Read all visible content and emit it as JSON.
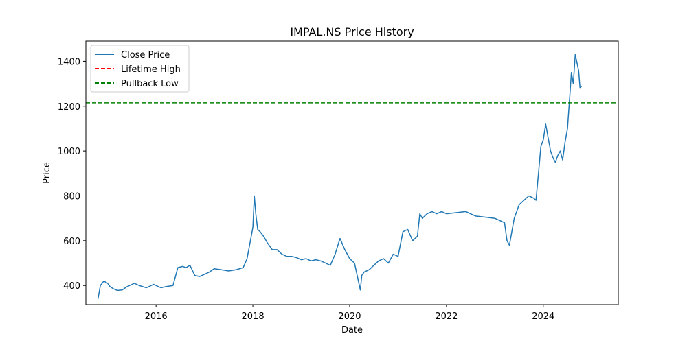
{
  "chart_data": {
    "type": "line",
    "title": "IMPAL.NS Price History",
    "xlabel": "Date",
    "ylabel": "Price",
    "xlim": [
      2014.55,
      2025.55
    ],
    "ylim": [
      315,
      1490
    ],
    "x_ticks": [
      2016,
      2018,
      2020,
      2022,
      2024
    ],
    "y_ticks": [
      400,
      600,
      800,
      1000,
      1200,
      1400
    ],
    "grid": false,
    "legend_position": "top-left",
    "series": [
      {
        "name": "Close Price",
        "color": "#1f77b4",
        "style": "solid",
        "x": [
          2014.8,
          2014.85,
          2014.92,
          2015.0,
          2015.05,
          2015.12,
          2015.2,
          2015.3,
          2015.4,
          2015.55,
          2015.65,
          2015.8,
          2015.95,
          2016.1,
          2016.2,
          2016.35,
          2016.45,
          2016.55,
          2016.62,
          2016.7,
          2016.8,
          2016.9,
          2017.0,
          2017.1,
          2017.2,
          2017.35,
          2017.5,
          2017.65,
          2017.8,
          2017.88,
          2017.95,
          2018.0,
          2018.03,
          2018.06,
          2018.1,
          2018.15,
          2018.22,
          2018.3,
          2018.4,
          2018.5,
          2018.6,
          2018.7,
          2018.8,
          2018.9,
          2019.0,
          2019.1,
          2019.2,
          2019.3,
          2019.4,
          2019.5,
          2019.6,
          2019.7,
          2019.8,
          2019.9,
          2020.0,
          2020.1,
          2020.18,
          2020.22,
          2020.25,
          2020.3,
          2020.4,
          2020.5,
          2020.6,
          2020.7,
          2020.8,
          2020.9,
          2021.0,
          2021.1,
          2021.2,
          2021.3,
          2021.4,
          2021.45,
          2021.5,
          2021.6,
          2021.7,
          2021.8,
          2021.9,
          2022.0,
          2022.2,
          2022.4,
          2022.6,
          2022.8,
          2023.0,
          2023.1,
          2023.2,
          2023.25,
          2023.3,
          2023.4,
          2023.5,
          2023.6,
          2023.7,
          2023.8,
          2023.85,
          2023.9,
          2023.95,
          2024.0,
          2024.05,
          2024.1,
          2024.15,
          2024.2,
          2024.25,
          2024.3,
          2024.35,
          2024.4,
          2024.45,
          2024.5,
          2024.55,
          2024.58,
          2024.62,
          2024.66,
          2024.7,
          2024.73,
          2024.76,
          2024.79
        ],
        "values": [
          340,
          400,
          420,
          410,
          395,
          385,
          378,
          380,
          395,
          410,
          400,
          390,
          405,
          390,
          395,
          400,
          480,
          485,
          480,
          490,
          445,
          440,
          450,
          460,
          475,
          470,
          465,
          470,
          480,
          520,
          600,
          660,
          800,
          720,
          650,
          640,
          620,
          590,
          560,
          560,
          540,
          530,
          530,
          525,
          515,
          520,
          510,
          515,
          510,
          500,
          490,
          540,
          610,
          560,
          520,
          500,
          420,
          380,
          445,
          460,
          470,
          490,
          510,
          520,
          500,
          540,
          530,
          640,
          650,
          600,
          620,
          720,
          700,
          720,
          730,
          720,
          730,
          720,
          725,
          730,
          710,
          705,
          700,
          690,
          680,
          600,
          580,
          700,
          760,
          780,
          800,
          790,
          780,
          900,
          1020,
          1050,
          1120,
          1060,
          1000,
          970,
          950,
          980,
          1000,
          960,
          1040,
          1100,
          1250,
          1350,
          1300,
          1430,
          1390,
          1360,
          1280,
          1290
        ]
      },
      {
        "name": "Lifetime High",
        "color": "#ff0000",
        "style": "dashed",
        "values": []
      },
      {
        "name": "Pullback Low",
        "color": "#008000",
        "style": "dashed",
        "y": 1215
      }
    ]
  }
}
